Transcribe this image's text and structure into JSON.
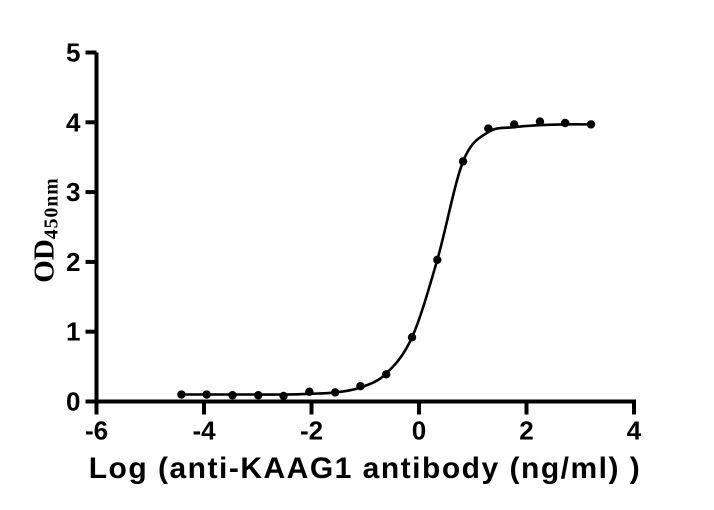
{
  "chart_data": {
    "type": "scatter",
    "title": "",
    "xlabel": "Log (anti-KAAG1 antibody (ng/ml) )",
    "ylabel": "OD",
    "ylabel_subscript": "450nm",
    "x_ticks": [
      -6,
      -4,
      -2,
      0,
      2,
      4
    ],
    "y_ticks": [
      0,
      1,
      2,
      3,
      4,
      5
    ],
    "xlim": [
      -6,
      4
    ],
    "ylim": [
      0,
      5
    ],
    "grid": false,
    "legend_position": "none",
    "colors": {
      "axis": "#000000",
      "marker": "#000000",
      "curve": "#000000",
      "background": "#ffffff"
    },
    "points": [
      [
        -4.42,
        0.1
      ],
      [
        -3.95,
        0.1
      ],
      [
        -3.47,
        0.09
      ],
      [
        -2.99,
        0.09
      ],
      [
        -2.52,
        0.08
      ],
      [
        -2.04,
        0.14
      ],
      [
        -1.56,
        0.13
      ],
      [
        -1.09,
        0.22
      ],
      [
        -0.61,
        0.39
      ],
      [
        -0.13,
        0.92
      ],
      [
        0.34,
        2.03
      ],
      [
        0.82,
        3.44
      ],
      [
        1.29,
        3.91
      ],
      [
        1.77,
        3.97
      ],
      [
        2.25,
        4.01
      ],
      [
        2.72,
        3.99
      ],
      [
        3.2,
        3.97
      ]
    ],
    "fit_curve": [
      [
        -4.42,
        0.1
      ],
      [
        -3.95,
        0.1
      ],
      [
        -3.47,
        0.1
      ],
      [
        -2.99,
        0.1
      ],
      [
        -2.52,
        0.1
      ],
      [
        -2.04,
        0.11
      ],
      [
        -1.56,
        0.13
      ],
      [
        -1.09,
        0.2
      ],
      [
        -0.61,
        0.4
      ],
      [
        -0.13,
        0.92
      ],
      [
        0.34,
        2.03
      ],
      [
        0.82,
        3.44
      ],
      [
        1.29,
        3.86
      ],
      [
        1.77,
        3.93
      ],
      [
        2.25,
        3.96
      ],
      [
        2.72,
        3.97
      ],
      [
        3.2,
        3.97
      ]
    ]
  }
}
